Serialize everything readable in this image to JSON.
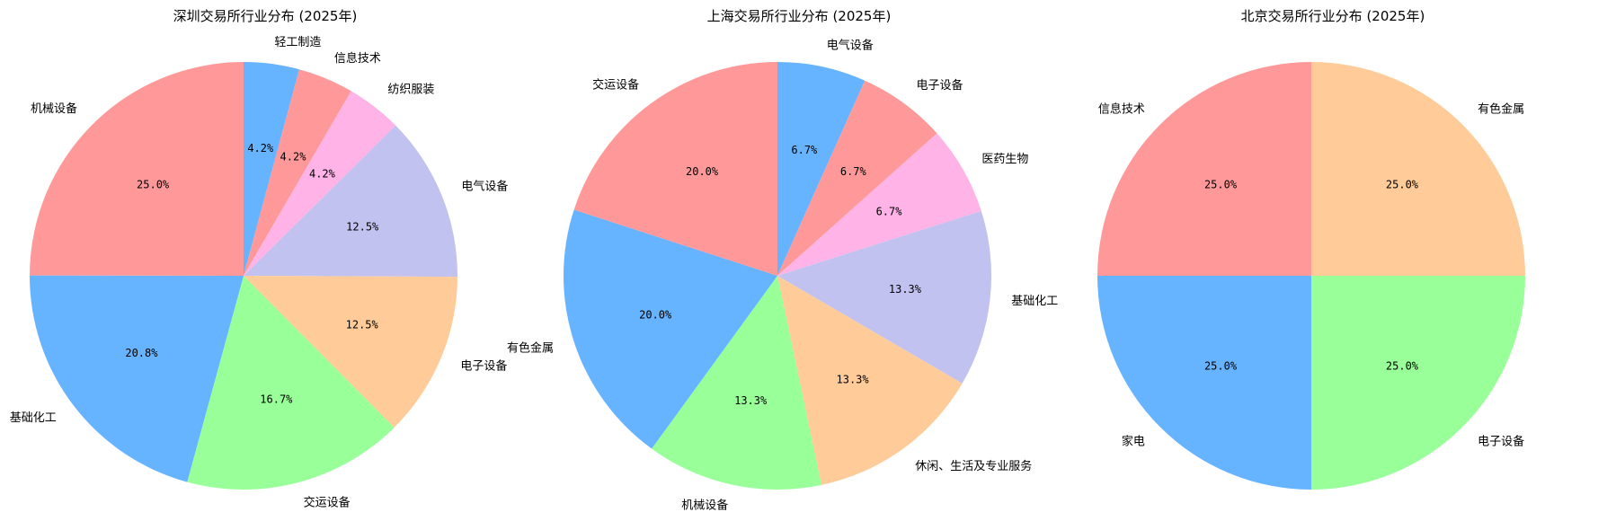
{
  "chart_data": [
    {
      "type": "pie",
      "title": "深圳交易所行业分布 (2025年)",
      "categories": [
        "轻工制造",
        "信息技术",
        "纺织服装",
        "电气设备",
        "电子设备",
        "交运设备",
        "基础化工",
        "机械设备"
      ],
      "values": [
        4.2,
        4.2,
        4.2,
        12.5,
        12.5,
        16.7,
        20.8,
        25.0
      ],
      "labels": [
        "4.2%",
        "4.2%",
        "4.2%",
        "12.5%",
        "12.5%",
        "16.7%",
        "20.8%",
        "25.0%"
      ],
      "colors": [
        "#66b3ff",
        "#ff9999",
        "#ffb3e6",
        "#c2c2f0",
        "#ffcc99",
        "#99ff99",
        "#66b3ff",
        "#ff9999"
      ],
      "start_angle": "top",
      "direction": "clockwise"
    },
    {
      "type": "pie",
      "title": "上海交易所行业分布 (2025年)",
      "categories": [
        "电气设备",
        "电子设备",
        "医药生物",
        "基础化工",
        "休闲、生活及专业服务",
        "机械设备",
        "有色金属",
        "交运设备"
      ],
      "values": [
        6.7,
        6.7,
        6.7,
        13.3,
        13.3,
        13.3,
        20.0,
        20.0
      ],
      "labels": [
        "6.7%",
        "6.7%",
        "6.7%",
        "13.3%",
        "13.3%",
        "13.3%",
        "20.0%",
        "20.0%"
      ],
      "colors": [
        "#66b3ff",
        "#ff9999",
        "#ffb3e6",
        "#c2c2f0",
        "#ffcc99",
        "#99ff99",
        "#66b3ff",
        "#ff9999"
      ],
      "start_angle": "top",
      "direction": "clockwise"
    },
    {
      "type": "pie",
      "title": "北京交易所行业分布 (2025年)",
      "categories": [
        "有色金属",
        "电子设备",
        "家电",
        "信息技术"
      ],
      "values": [
        25.0,
        25.0,
        25.0,
        25.0
      ],
      "labels": [
        "25.0%",
        "25.0%",
        "25.0%",
        "25.0%"
      ],
      "colors": [
        "#ffcc99",
        "#99ff99",
        "#66b3ff",
        "#ff9999"
      ],
      "start_angle": "top",
      "direction": "clockwise"
    }
  ]
}
